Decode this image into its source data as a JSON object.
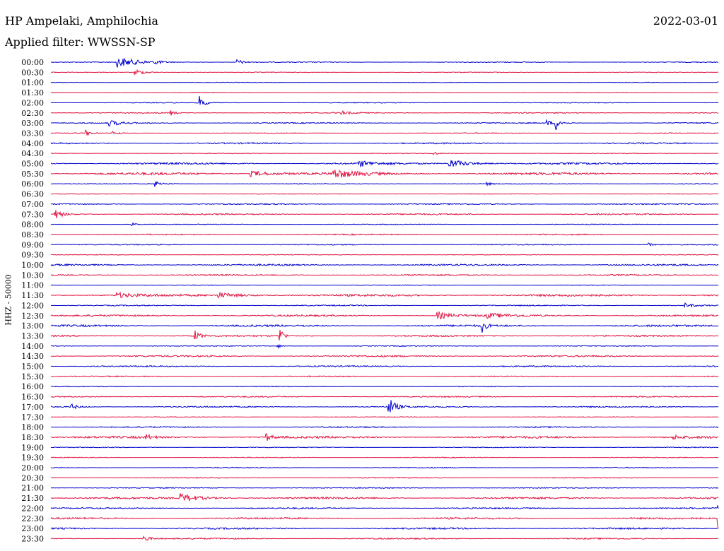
{
  "header": {
    "station": "HP Ampelaki, Amphilochia",
    "date": "2022-03-01",
    "filter": "Applied filter: WWSSN-SP"
  },
  "chart_data": {
    "type": "line",
    "title": "HP Ampelaki, Amphilochia",
    "subtitle": "Applied filter: WWSSN-SP",
    "date": "2022-03-01",
    "ylabel": "HHZ - 50000",
    "row_labels": [
      "00:00",
      "00:30",
      "01:00",
      "01:30",
      "02:00",
      "02:30",
      "03:00",
      "03:30",
      "04:00",
      "04:30",
      "05:00",
      "05:30",
      "06:00",
      "06:30",
      "07:00",
      "07:30",
      "08:00",
      "08:30",
      "09:00",
      "09:30",
      "10:00",
      "10:30",
      "11:00",
      "11:30",
      "12:00",
      "12:30",
      "13:00",
      "13:30",
      "14:00",
      "14:30",
      "15:00",
      "15:30",
      "16:00",
      "16:30",
      "17:00",
      "17:30",
      "18:00",
      "18:30",
      "19:00",
      "19:30",
      "20:00",
      "20:30",
      "21:00",
      "21:30",
      "22:00",
      "22:30",
      "23:00",
      "23:30"
    ],
    "x_unit": "minutes within row",
    "x_range": [
      0,
      30
    ],
    "colors": {
      "even_rows": "#0000cc",
      "odd_rows": "#e0113f"
    },
    "noise": [
      0.6,
      0.5,
      0.4,
      0.5,
      0.6,
      0.8,
      0.8,
      0.6,
      1.0,
      0.5,
      1.4,
      1.8,
      0.6,
      0.4,
      0.8,
      1.0,
      0.6,
      0.9,
      0.8,
      0.5,
      1.2,
      1.0,
      0.5,
      1.6,
      0.8,
      1.2,
      1.4,
      1.2,
      0.6,
      1.2,
      1.0,
      0.8,
      0.6,
      0.9,
      1.0,
      0.4,
      0.9,
      1.6,
      0.6,
      0.6,
      0.7,
      0.7,
      0.7,
      1.4,
      1.0,
      1.3,
      1.2,
      1.0
    ],
    "events": [
      {
        "row": "00:00",
        "t": 3.0,
        "amp": 7,
        "dur": 1.8
      },
      {
        "row": "00:00",
        "t": 4.7,
        "amp": 3,
        "dur": 0.4
      },
      {
        "row": "00:00",
        "t": 8.4,
        "amp": 4,
        "dur": 0.5
      },
      {
        "row": "00:30",
        "t": 3.8,
        "amp": 4,
        "dur": 0.9
      },
      {
        "row": "01:00",
        "t": 30.0,
        "amp": 3,
        "dur": 0.4
      },
      {
        "row": "02:00",
        "t": 6.7,
        "amp": 9,
        "dur": 0.4
      },
      {
        "row": "02:30",
        "t": 5.4,
        "amp": 3,
        "dur": 0.3
      },
      {
        "row": "02:30",
        "t": 13.0,
        "amp": 2.5,
        "dur": 0.8
      },
      {
        "row": "03:00",
        "t": 2.6,
        "amp": 4,
        "dur": 1.0
      },
      {
        "row": "03:00",
        "t": 22.3,
        "amp": 5,
        "dur": 0.3
      },
      {
        "row": "03:00",
        "t": 22.7,
        "amp": 10,
        "dur": 0.4
      },
      {
        "row": "03:30",
        "t": 1.6,
        "amp": 4,
        "dur": 0.3
      },
      {
        "row": "03:30",
        "t": 2.8,
        "amp": 2.5,
        "dur": 0.4
      },
      {
        "row": "04:30",
        "t": 17.2,
        "amp": 3,
        "dur": 0.3
      },
      {
        "row": "05:00",
        "t": 13.9,
        "amp": 4,
        "dur": 1.0
      },
      {
        "row": "05:00",
        "t": 17.9,
        "amp": 6,
        "dur": 1.6
      },
      {
        "row": "05:30",
        "t": 9.0,
        "amp": 4,
        "dur": 1.8
      },
      {
        "row": "05:30",
        "t": 12.7,
        "amp": 6,
        "dur": 1.6
      },
      {
        "row": "06:00",
        "t": 4.7,
        "amp": 4,
        "dur": 0.6
      },
      {
        "row": "06:00",
        "t": 19.6,
        "amp": 2.5,
        "dur": 0.3
      },
      {
        "row": "07:30",
        "t": 0.2,
        "amp": 6,
        "dur": 0.6
      },
      {
        "row": "08:00",
        "t": 3.6,
        "amp": 4,
        "dur": 0.3
      },
      {
        "row": "09:00",
        "t": 26.9,
        "amp": 3,
        "dur": 0.5
      },
      {
        "row": "11:30",
        "t": 3.0,
        "amp": 3.5,
        "dur": 1.4
      },
      {
        "row": "11:30",
        "t": 7.5,
        "amp": 3.5,
        "dur": 2.0
      },
      {
        "row": "12:00",
        "t": 28.5,
        "amp": 3,
        "dur": 0.8
      },
      {
        "row": "12:30",
        "t": 17.4,
        "amp": 5,
        "dur": 1.2
      },
      {
        "row": "12:30",
        "t": 19.6,
        "amp": 3,
        "dur": 1.8
      },
      {
        "row": "13:00",
        "t": 19.4,
        "amp": 9,
        "dur": 0.3
      },
      {
        "row": "13:30",
        "t": 6.5,
        "amp": 7,
        "dur": 0.4
      },
      {
        "row": "13:30",
        "t": 10.3,
        "amp": 11,
        "dur": 0.3
      },
      {
        "row": "14:00",
        "t": 10.2,
        "amp": 3,
        "dur": 0.3
      },
      {
        "row": "17:00",
        "t": 0.9,
        "amp": 4,
        "dur": 0.6
      },
      {
        "row": "17:00",
        "t": 15.2,
        "amp": 13,
        "dur": 0.5
      },
      {
        "row": "18:30",
        "t": 4.3,
        "amp": 3.5,
        "dur": 0.5
      },
      {
        "row": "18:30",
        "t": 9.7,
        "amp": 5,
        "dur": 0.5
      },
      {
        "row": "18:30",
        "t": 28.0,
        "amp": 3,
        "dur": 0.8
      },
      {
        "row": "21:30",
        "t": 5.8,
        "amp": 6,
        "dur": 1.6
      },
      {
        "row": "22:00",
        "t": 30.0,
        "amp": 8,
        "dur": 0.5
      },
      {
        "row": "22:30",
        "t": 30.0,
        "amp": 15,
        "dur": 0.5
      },
      {
        "row": "23:30",
        "t": 4.2,
        "amp": 5,
        "dur": 0.4
      }
    ]
  }
}
